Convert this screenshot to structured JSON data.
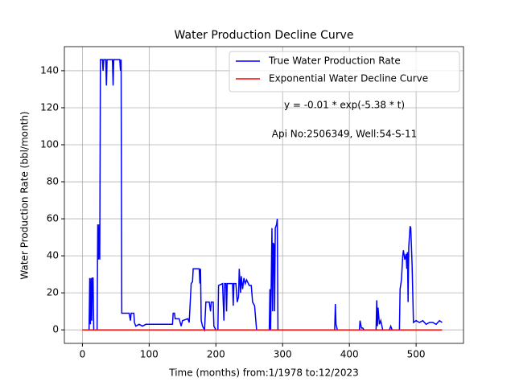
{
  "chart_data": {
    "type": "line",
    "title": "Water Production Decline Curve",
    "xlabel": "Time (months) from:1/1978 to:12/2023",
    "ylabel": "Water Production Rate (bbl/month)",
    "annotations": [
      "y = -0.01 * exp(-5.38 * t)",
      "Api No:2506349, Well:54-S-11"
    ],
    "xlim": [
      -27,
      571
    ],
    "ylim": [
      -7.3,
      153
    ],
    "xticks": [
      0,
      100,
      200,
      300,
      400,
      500
    ],
    "yticks": [
      0,
      20,
      40,
      60,
      80,
      100,
      120,
      140
    ],
    "grid": true,
    "legend": "upper right",
    "series": [
      {
        "name": "True Water Production Rate",
        "color": "#0000ff",
        "x": [
          0,
          10,
          11,
          12,
          13,
          14,
          15,
          16,
          17,
          22,
          23,
          24,
          25,
          26,
          27,
          30,
          31,
          32,
          35,
          36,
          37,
          45,
          46,
          47,
          56,
          57,
          58,
          59,
          70,
          72,
          73,
          77,
          78,
          80,
          85,
          90,
          95,
          135,
          136,
          138,
          139,
          145,
          148,
          150,
          158,
          160,
          163,
          165,
          166,
          175,
          176,
          177,
          178,
          180,
          183,
          185,
          190,
          192,
          193,
          196,
          197,
          200,
          203,
          204,
          210,
          212,
          213,
          215,
          216,
          217,
          225,
          226,
          227,
          230,
          232,
          234,
          235,
          237,
          238,
          240,
          242,
          244,
          246,
          250,
          253,
          255,
          258,
          261,
          280,
          281,
          282,
          284,
          285,
          286,
          287,
          288,
          289,
          291,
          292,
          293,
          378,
          379,
          380,
          382,
          415,
          416,
          418,
          420,
          422,
          440,
          441,
          442,
          443,
          445,
          447,
          450,
          460,
          462,
          464,
          475,
          476,
          478,
          480,
          481,
          483,
          485,
          486,
          487,
          488,
          489,
          491,
          492,
          494,
          496,
          500,
          505,
          510,
          515,
          520,
          525,
          530,
          535,
          539
        ],
        "values": [
          0,
          0,
          28,
          3,
          28,
          5,
          28,
          28,
          0,
          0,
          57,
          38,
          57,
          38,
          146,
          146,
          140,
          146,
          146,
          132,
          146,
          146,
          132,
          146,
          146,
          140,
          146,
          9,
          9,
          5,
          9,
          9,
          4,
          2,
          3,
          2,
          3,
          3,
          9,
          9,
          6,
          6,
          2,
          5,
          6,
          4,
          25,
          26,
          33,
          33,
          25,
          33,
          5,
          2,
          0,
          15,
          15,
          10,
          15,
          15,
          2,
          0,
          0,
          24,
          25,
          5,
          25,
          25,
          10,
          25,
          25,
          13,
          25,
          25,
          15,
          18,
          33,
          20,
          29,
          22,
          28,
          25,
          27,
          24,
          24,
          15,
          13,
          0,
          0,
          22,
          0,
          55,
          10,
          47,
          46,
          10,
          55,
          57,
          60,
          0,
          0,
          14,
          3,
          0,
          0,
          5,
          1,
          1,
          0,
          0,
          16,
          2,
          12,
          3,
          5,
          0,
          0,
          2,
          0,
          0,
          22,
          27,
          40,
          43,
          38,
          41,
          33,
          42,
          15,
          45,
          56,
          55,
          35,
          4,
          5,
          4,
          5,
          3,
          4,
          4,
          3,
          5,
          4
        ]
      },
      {
        "name": "Exponential Water Decline Curve",
        "color": "#ff0000",
        "x": [
          0,
          539
        ],
        "values": [
          -0.01,
          0
        ]
      }
    ]
  }
}
